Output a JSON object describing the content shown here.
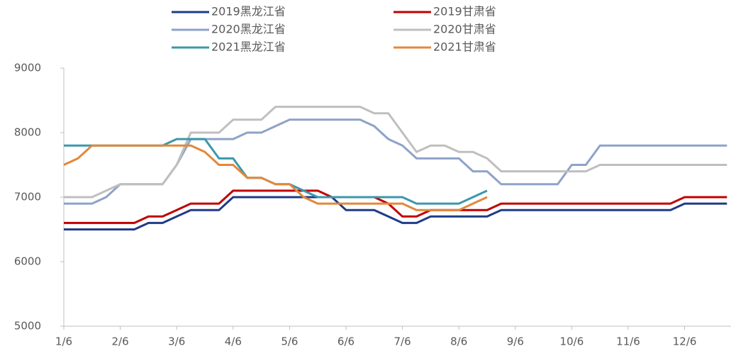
{
  "chart_data": {
    "type": "line",
    "categories": [
      "1/6",
      null,
      null,
      null,
      "2/6",
      null,
      null,
      null,
      "3/6",
      null,
      null,
      null,
      "4/6",
      null,
      null,
      null,
      "5/6",
      null,
      null,
      null,
      "6/6",
      null,
      null,
      null,
      "7/6",
      null,
      null,
      null,
      "8/6",
      null,
      null,
      null,
      "9/6",
      null,
      null,
      null,
      "10/6",
      null,
      null,
      null,
      "11/6",
      null,
      null,
      null,
      "12/6",
      null,
      null,
      null
    ],
    "series": [
      {
        "name": "2019黑龙江省",
        "color": "#1f3b87",
        "values": [
          6500,
          6500,
          6500,
          6500,
          6500,
          6500,
          6600,
          6600,
          6700,
          6800,
          6800,
          6800,
          7000,
          7000,
          7000,
          7000,
          7000,
          7000,
          7000,
          7000,
          6800,
          6800,
          6800,
          6700,
          6600,
          6600,
          6700,
          6700,
          6700,
          6700,
          6700,
          6800,
          6800,
          6800,
          6800,
          6800,
          6800,
          6800,
          6800,
          6800,
          6800,
          6800,
          6800,
          6800,
          6900,
          6900,
          6900,
          6900
        ]
      },
      {
        "name": "2019甘肃省",
        "color": "#c00000",
        "values": [
          6600,
          6600,
          6600,
          6600,
          6600,
          6600,
          6700,
          6700,
          6800,
          6900,
          6900,
          6900,
          7100,
          7100,
          7100,
          7100,
          7100,
          7100,
          7100,
          7000,
          7000,
          7000,
          7000,
          6900,
          6700,
          6700,
          6800,
          6800,
          6800,
          6800,
          6800,
          6900,
          6900,
          6900,
          6900,
          6900,
          6900,
          6900,
          6900,
          6900,
          6900,
          6900,
          6900,
          6900,
          7000,
          7000,
          7000,
          7000
        ]
      },
      {
        "name": "2020黑龙江省",
        "color": "#8ea2c9",
        "values": [
          6900,
          6900,
          6900,
          7000,
          7200,
          7200,
          7200,
          7200,
          7500,
          7900,
          7900,
          7900,
          7900,
          8000,
          8000,
          8100,
          8200,
          8200,
          8200,
          8200,
          8200,
          8200,
          8100,
          7900,
          7800,
          7600,
          7600,
          7600,
          7600,
          7400,
          7400,
          7200,
          7200,
          7200,
          7200,
          7200,
          7500,
          7500,
          7800,
          7800,
          7800,
          7800,
          7800,
          7800,
          7800,
          7800,
          7800,
          7800
        ]
      },
      {
        "name": "2020甘肃省",
        "color": "#bfbfbf",
        "values": [
          7000,
          7000,
          7000,
          7100,
          7200,
          7200,
          7200,
          7200,
          7500,
          8000,
          8000,
          8000,
          8200,
          8200,
          8200,
          8400,
          8400,
          8400,
          8400,
          8400,
          8400,
          8400,
          8300,
          8300,
          8000,
          7700,
          7800,
          7800,
          7700,
          7700,
          7600,
          7400,
          7400,
          7400,
          7400,
          7400,
          7400,
          7400,
          7500,
          7500,
          7500,
          7500,
          7500,
          7500,
          7500,
          7500,
          7500,
          7500
        ]
      },
      {
        "name": "2021黑龙江省",
        "color": "#3b98a9",
        "values": [
          7800,
          7800,
          7800,
          7800,
          7800,
          7800,
          7800,
          7800,
          7900,
          7900,
          7900,
          7600,
          7600,
          7300,
          7300,
          7200,
          7200,
          7100,
          7000,
          7000,
          7000,
          7000,
          7000,
          7000,
          7000,
          6900,
          6900,
          6900,
          6900,
          7000,
          7100,
          null,
          null,
          null,
          null,
          null,
          null,
          null,
          null,
          null,
          null,
          null,
          null,
          null,
          null,
          null,
          null,
          null
        ]
      },
      {
        "name": "2021甘肃省",
        "color": "#e2883b",
        "values": [
          7500,
          7600,
          7800,
          7800,
          7800,
          7800,
          7800,
          7800,
          7800,
          7800,
          7700,
          7500,
          7500,
          7300,
          7300,
          7200,
          7200,
          7000,
          6900,
          6900,
          6900,
          6900,
          6900,
          6900,
          6900,
          6800,
          6800,
          6800,
          6800,
          6900,
          7000,
          null,
          null,
          null,
          null,
          null,
          null,
          null,
          null,
          null,
          null,
          null,
          null,
          null,
          null,
          null,
          null,
          null
        ]
      }
    ],
    "ylim": [
      5000,
      9000
    ],
    "yticks": [
      5000,
      6000,
      7000,
      8000,
      9000
    ]
  }
}
